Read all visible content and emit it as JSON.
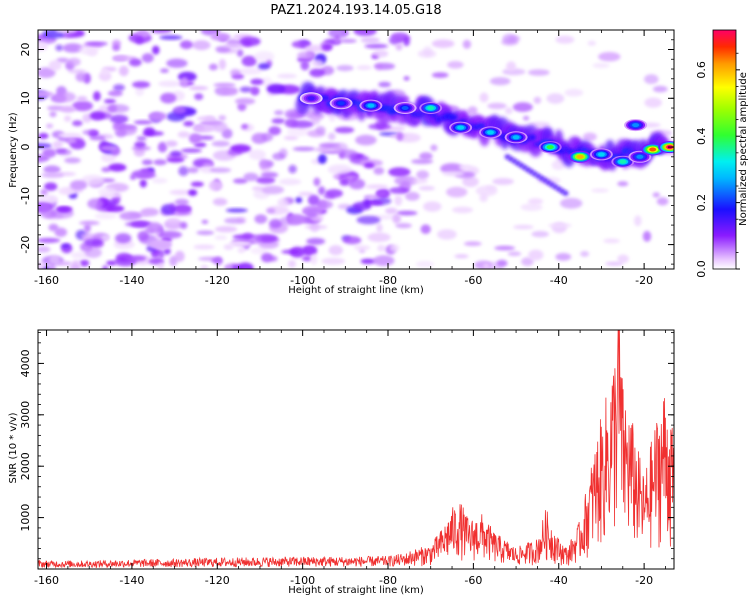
{
  "title": "PAZ1.2024.193.14.05.G18",
  "chart_data": [
    {
      "type": "heatmap",
      "xlabel": "Height of straight line (km)",
      "ylabel": "Frequency (Hz)",
      "xlim": [
        -162,
        -13
      ],
      "ylim": [
        -25,
        24
      ],
      "x_ticks": [
        -160,
        -140,
        -120,
        -100,
        -80,
        -60,
        -40,
        -20
      ],
      "x_tick_labels": [
        "-160",
        "-140",
        "-120",
        "-100",
        "-80",
        "-60",
        "-40",
        "-20"
      ],
      "y_ticks": [
        -20,
        -10,
        0,
        10,
        20
      ],
      "y_tick_labels": [
        "-20",
        "-10",
        "0",
        "10",
        "20"
      ],
      "colorbar": {
        "label": "Normalized spectral amplitude",
        "range": [
          0,
          0.72
        ],
        "ticks": [
          0.0,
          0.2,
          0.4,
          0.6
        ],
        "tick_labels": [
          "0.0",
          "0.2",
          "0.4",
          "0.6"
        ],
        "colormap": "gist_ncar_r"
      },
      "ridge": {
        "x": [
          -100,
          -90,
          -80,
          -70,
          -60,
          -50,
          -40,
          -30,
          -20,
          -15
        ],
        "y": [
          10,
          9,
          8,
          7,
          4,
          2,
          0,
          -2,
          -1,
          0
        ]
      },
      "ridge_peaks": [
        {
          "x": -98,
          "y": 10,
          "value": 0.15
        },
        {
          "x": -91,
          "y": 9,
          "value": 0.2
        },
        {
          "x": -84,
          "y": 8.5,
          "value": 0.28
        },
        {
          "x": -76,
          "y": 8,
          "value": 0.22
        },
        {
          "x": -70,
          "y": 8,
          "value": 0.35
        },
        {
          "x": -63,
          "y": 4,
          "value": 0.3
        },
        {
          "x": -56,
          "y": 3,
          "value": 0.3
        },
        {
          "x": -50,
          "y": 2,
          "value": 0.28
        },
        {
          "x": -42,
          "y": 0,
          "value": 0.4
        },
        {
          "x": -35,
          "y": -2,
          "value": 0.6
        },
        {
          "x": -30,
          "y": -1.5,
          "value": 0.3
        },
        {
          "x": -25,
          "y": -3,
          "value": 0.35
        },
        {
          "x": -21,
          "y": -2,
          "value": 0.25
        },
        {
          "x": -18,
          "y": -0.5,
          "value": 0.65
        },
        {
          "x": -14,
          "y": 0,
          "value": 0.72
        },
        {
          "x": -22,
          "y": 4.5,
          "value": 0.25
        }
      ]
    },
    {
      "type": "line",
      "xlabel": "Height of straight line (km)",
      "ylabel": "SNR (10 * v/v)",
      "xlim": [
        -162,
        -13
      ],
      "ylim": [
        0,
        4650
      ],
      "x_ticks": [
        -160,
        -140,
        -120,
        -100,
        -80,
        -60,
        -40,
        -20
      ],
      "x_tick_labels": [
        "-160",
        "-140",
        "-120",
        "-100",
        "-80",
        "-60",
        "-40",
        "-20"
      ],
      "y_ticks": [
        1000,
        2000,
        3000,
        4000
      ],
      "y_tick_labels": [
        "1000",
        "2000",
        "3000",
        "4000"
      ],
      "color": "#f03030",
      "series": [
        {
          "x": [
            -162,
            -150,
            -140,
            -130,
            -120,
            -110,
            -100,
            -90,
            -80,
            -75,
            -70,
            -67,
            -65,
            -63,
            -61,
            -58,
            -55,
            -50,
            -45,
            -43,
            -42,
            -40,
            -38,
            -35,
            -33,
            -31,
            -29,
            -27,
            -26,
            -25,
            -23,
            -20,
            -18,
            -16,
            -15,
            -13
          ],
          "y": [
            150,
            150,
            170,
            180,
            200,
            210,
            220,
            220,
            230,
            300,
            400,
            700,
            1000,
            1100,
            800,
            900,
            600,
            350,
            500,
            1000,
            800,
            500,
            350,
            800,
            1500,
            2200,
            2800,
            3500,
            4650,
            3000,
            2500,
            1500,
            2200,
            2800,
            3000,
            2100
          ]
        }
      ]
    }
  ]
}
